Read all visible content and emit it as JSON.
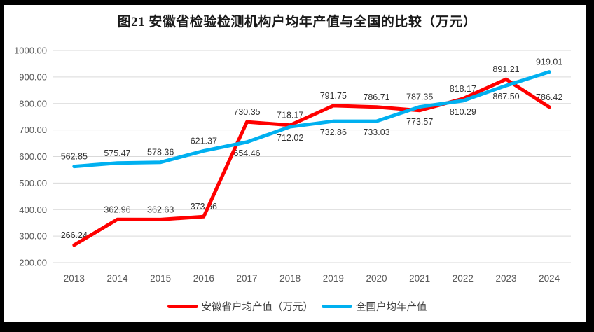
{
  "title": "图21 安徽省检验检测机构户均年产值与全国的比较（万元）",
  "legend": [
    {
      "label": "安徽省户均产值（万元）",
      "color": "#FF0000"
    },
    {
      "label": "全国户均年产值",
      "color": "#00B0F0"
    }
  ],
  "colors": {
    "anhui_line": "#FF0000",
    "national_line": "#00B0F0",
    "gridline": "#D9D9D9",
    "axis_tick_text": "#595959",
    "data_label_text": "#333333",
    "frame": "#000000",
    "background": "#FFFFFF"
  },
  "chart_data": {
    "type": "line",
    "title": "图21 安徽省检验检测机构户均年产值与全国的比较（万元）",
    "categories": [
      "2013",
      "2014",
      "2015",
      "2016",
      "2017",
      "2018",
      "2019",
      "2020",
      "2021",
      "2022",
      "2023",
      "2024"
    ],
    "series": [
      {
        "name": "安徽省户均产值（万元）",
        "color": "#FF0000",
        "values": [
          266.24,
          362.96,
          362.63,
          373.66,
          730.35,
          718.17,
          791.75,
          786.71,
          773.57,
          818.17,
          891.21,
          786.42
        ],
        "label_positions": [
          "above",
          "above",
          "above",
          "above",
          "above",
          "above",
          "above",
          "above",
          "below",
          "above",
          "above",
          "above"
        ]
      },
      {
        "name": "全国户均年产值",
        "color": "#00B0F0",
        "values": [
          562.85,
          575.47,
          578.36,
          621.37,
          654.46,
          712.02,
          732.86,
          733.03,
          787.35,
          810.29,
          867.5,
          919.01
        ],
        "label_positions": [
          "above",
          "above",
          "above",
          "above",
          "below",
          "below",
          "below",
          "below",
          "above",
          "below",
          "below",
          "above"
        ]
      }
    ],
    "ylim": [
      200,
      1000
    ],
    "ytick_step": 100,
    "ytick_labels": [
      "200.00",
      "300.00",
      "400.00",
      "500.00",
      "600.00",
      "700.00",
      "800.00",
      "900.00",
      "1000.00"
    ],
    "value_format_decimals": 2,
    "grid": true,
    "legend_position": "bottom",
    "xlabel": "",
    "ylabel": ""
  }
}
